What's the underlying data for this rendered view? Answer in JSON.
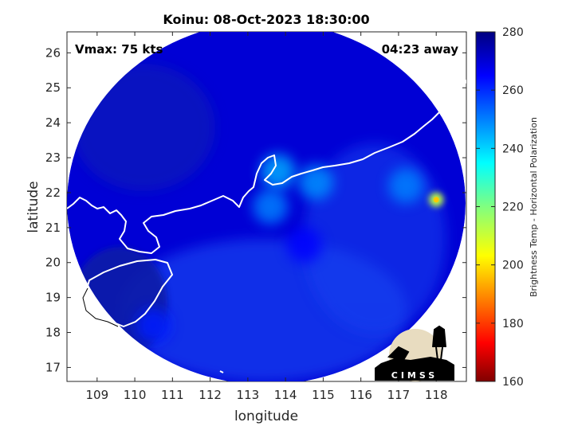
{
  "chart_data": {
    "type": "heatmap",
    "title": "Koinu: 08-Oct-2023 18:30:00",
    "xlabel": "longitude",
    "ylabel": "latitude",
    "xlim": [
      108.2,
      118.8
    ],
    "ylim": [
      16.6,
      26.6
    ],
    "xticks": [
      "109",
      "110",
      "111",
      "112",
      "113",
      "114",
      "115",
      "116",
      "117",
      "118"
    ],
    "yticks": [
      "17",
      "18",
      "19",
      "20",
      "21",
      "22",
      "23",
      "24",
      "25",
      "26"
    ],
    "annotations": {
      "vmax": "Vmax: 75 kts",
      "time_away": "04:23 away"
    },
    "colorbar": {
      "label": "Brightness Temp - Horizontal Polarization",
      "range": [
        160,
        280
      ],
      "ticks": [
        "280",
        "260",
        "240",
        "220",
        "200",
        "180",
        "160"
      ],
      "colormap": "jet"
    },
    "swath_background_value": 270,
    "features": [
      {
        "lon": 113.8,
        "lat": 22.6,
        "value": 245
      },
      {
        "lon": 114.8,
        "lat": 22.3,
        "value": 248
      },
      {
        "lon": 113.6,
        "lat": 21.6,
        "value": 250
      },
      {
        "lon": 117.2,
        "lat": 22.2,
        "value": 250
      },
      {
        "lon": 118.0,
        "lat": 21.8,
        "value": 212
      },
      {
        "lon": 110.5,
        "lat": 18.2,
        "value": 262
      },
      {
        "lon": 114.5,
        "lat": 20.5,
        "value": 265
      }
    ],
    "grid": false,
    "coastline": true
  },
  "logo": {
    "text": "CIMSS"
  }
}
